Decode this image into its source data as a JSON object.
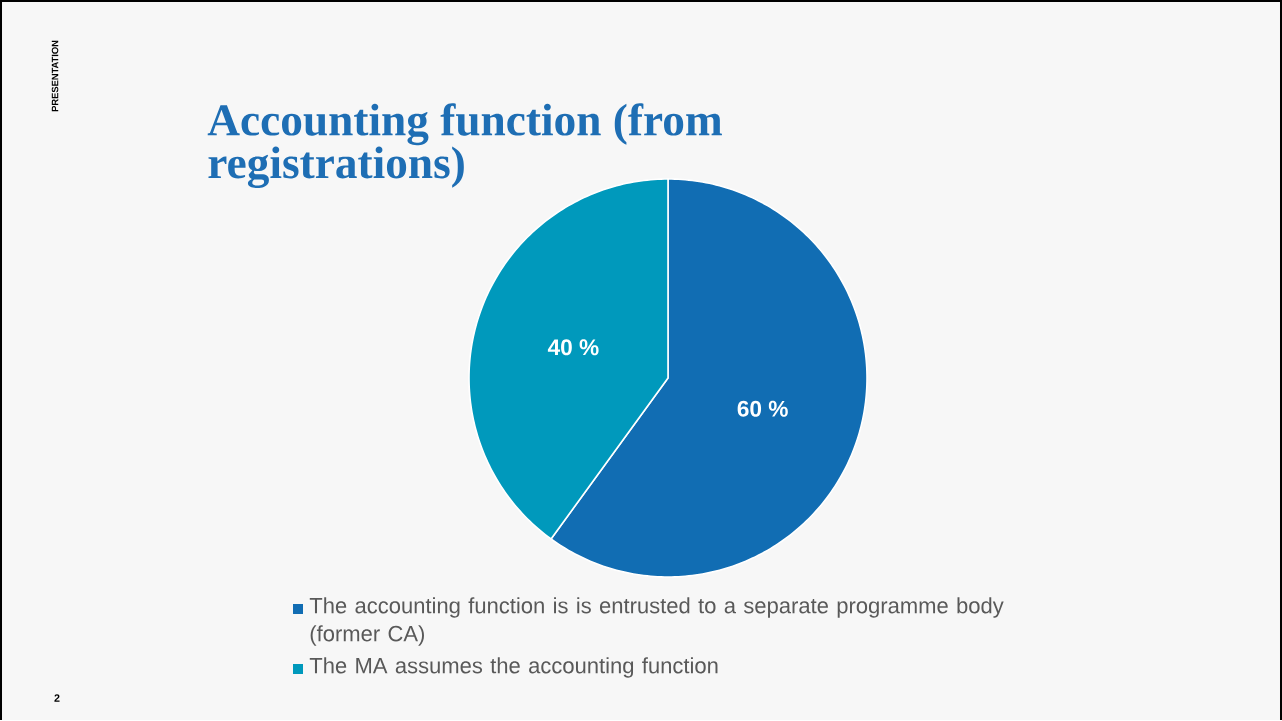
{
  "chart_data": {
    "type": "pie",
    "title": "Accounting function (from registrations)",
    "categories": [
      "The accounting function is is entrusted to a separate programme body (former CA)",
      "The MA assumes the accounting function"
    ],
    "values": [
      60,
      40
    ],
    "colors": [
      "#116db3",
      "#0099bc"
    ],
    "value_labels": [
      "60 %",
      "40 %"
    ],
    "legend": "bottom",
    "annotations": [
      "PRESENTATION",
      "2"
    ]
  }
}
